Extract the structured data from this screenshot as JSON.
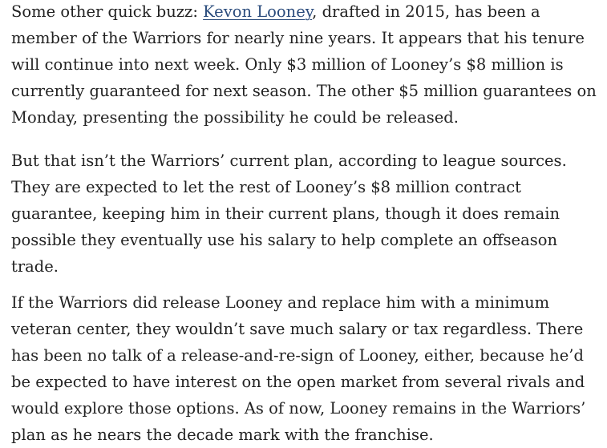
{
  "article": {
    "paragraphs": [
      {
        "before_link": "Some other quick buzz: ",
        "link_text": "Kevon Looney",
        "after_link": ", drafted in 2015, has been a member of the Warriors for nearly nine years. It appears that his tenure will continue into next week. Only $3 million of Looney’s $8 million is currently guaranteed for next season. The other $5 million guarantees on Monday, presenting the possibility he could be released."
      },
      {
        "text": "But that isn’t the Warriors’ current plan, according to league sources. They are expected to let the rest of Looney’s $8 million contract guarantee, keeping him in their current plans, though it does remain possible they eventually use his salary to help complete an offseason trade."
      },
      {
        "text": "If the Warriors did release Looney and replace him with a minimum veteran center, they wouldn’t save much salary or tax regardless. There has been no talk of a release-and-re-sign of Looney, either, because he’d be expected to have interest on the open market from several rivals and would explore those options. As of now, Looney remains in the Warriors’ plan as he nears the decade mark with the franchise."
      }
    ]
  }
}
